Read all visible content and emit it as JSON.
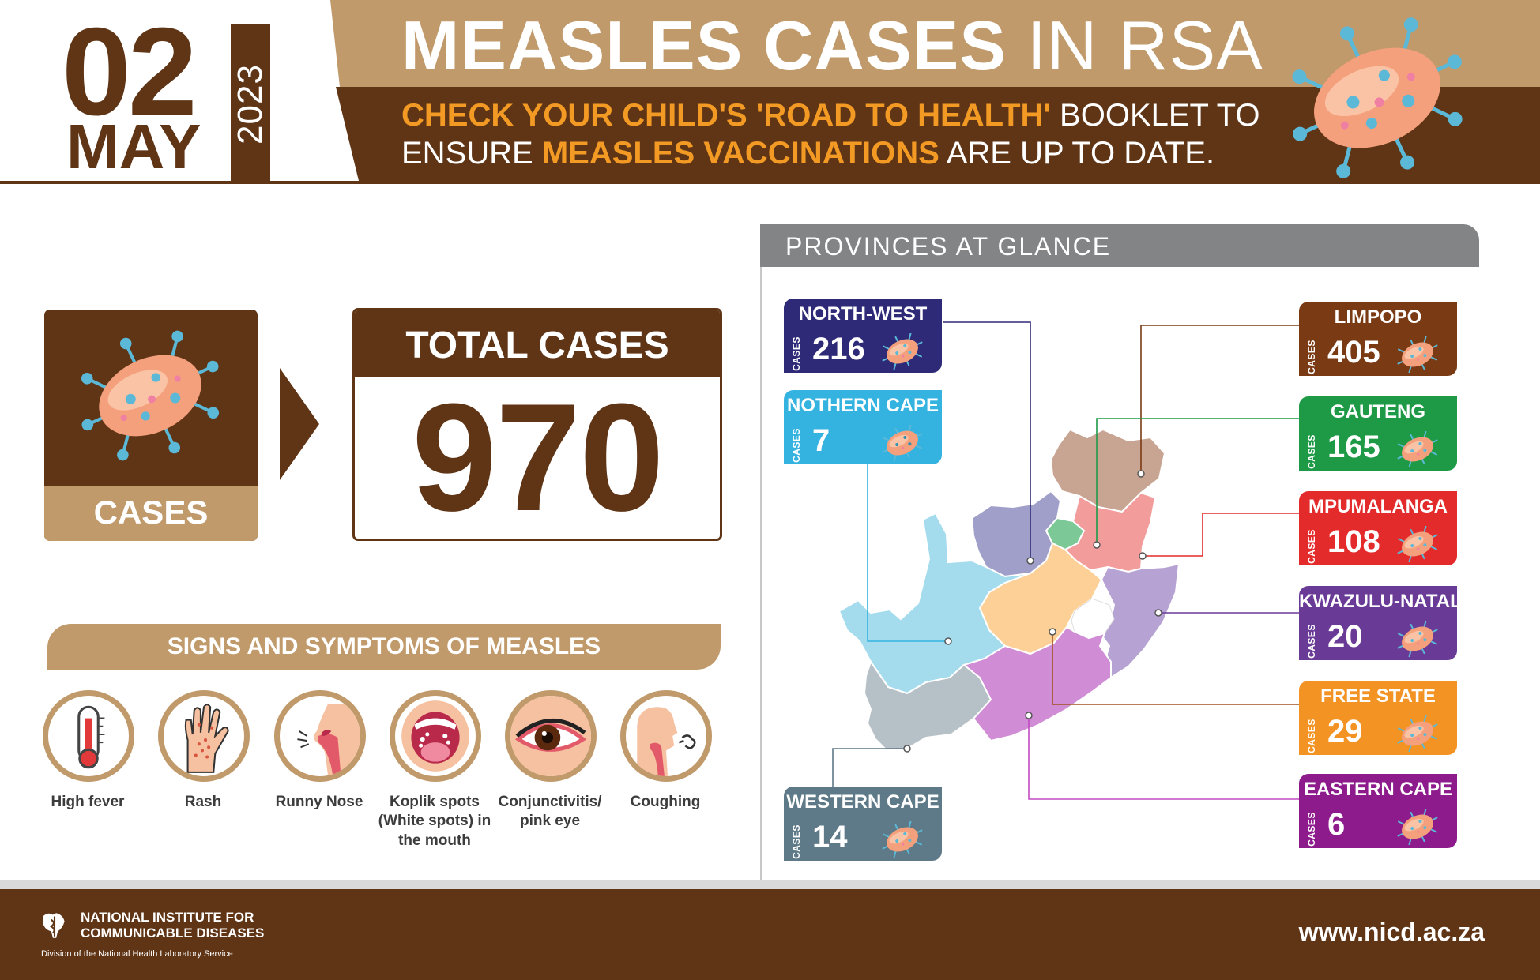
{
  "header": {
    "day": "02",
    "month": "MAY",
    "year": "2023",
    "title_bold": "MEASLES CASES",
    "title_regular": "IN RSA",
    "line1_highlight": "CHECK YOUR CHILD'S 'ROAD TO HEALTH'",
    "line1_rest": "BOOKLET TO",
    "line2_start": "ENSURE",
    "line2_highlight": "MEASLES VACCINATIONS",
    "line2_end": "ARE UP TO DATE."
  },
  "summary": {
    "cases_label": "CASES",
    "total_label": "TOTAL CASES",
    "total_value": "970"
  },
  "symptoms": {
    "heading": "SIGNS AND SYMPTOMS OF MEASLES",
    "items": [
      {
        "label": "High fever",
        "icon": "thermometer-icon"
      },
      {
        "label": "Rash",
        "icon": "rash-hand-icon"
      },
      {
        "label": "Runny Nose",
        "icon": "runny-nose-icon"
      },
      {
        "label": "Koplik spots (White spots) in the mouth",
        "icon": "mouth-spots-icon"
      },
      {
        "label": "Conjunctivitis/ pink eye",
        "icon": "pink-eye-icon"
      },
      {
        "label": "Coughing",
        "icon": "coughing-icon"
      }
    ]
  },
  "provinces": {
    "heading": "PROVINCES AT GLANCE",
    "cases_word": "CASES",
    "items": [
      {
        "name": "NORTH-WEST",
        "value": "216",
        "color": "#2e2a78"
      },
      {
        "name": "NOTHERN CAPE",
        "value": "7",
        "color": "#35b3e0"
      },
      {
        "name": "WESTERN CAPE",
        "value": "14",
        "color": "#5e7987"
      },
      {
        "name": "LIMPOPO",
        "value": "405",
        "color": "#7a3a14"
      },
      {
        "name": "GAUTENG",
        "value": "165",
        "color": "#1e9a47"
      },
      {
        "name": "MPUMALANGA",
        "value": "108",
        "color": "#e32b2c"
      },
      {
        "name": "KWAZULU-NATAL",
        "value": "20",
        "color": "#6a3a97"
      },
      {
        "name": "FREE STATE",
        "value": "29",
        "color": "#f39324"
      },
      {
        "name": "EASTERN CAPE",
        "value": "6",
        "color": "#8d1b8c"
      }
    ]
  },
  "footer": {
    "org_name": "NATIONAL INSTITUTE FOR\nCOMMUNICABLE DISEASES",
    "org_sub": "Division of the National Health Laboratory Service",
    "website": "www.nicd.ac.za"
  },
  "colors": {
    "brown": "#5f3516",
    "tan": "#c19a6b",
    "orange": "#f39a25",
    "grey": "#838486"
  }
}
